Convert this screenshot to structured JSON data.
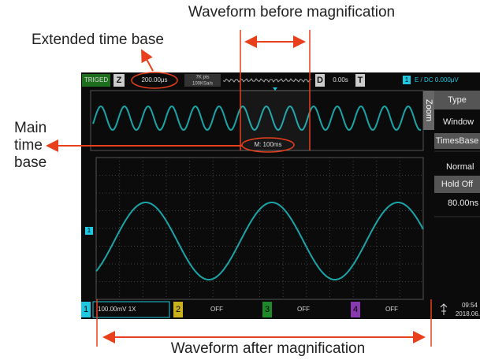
{
  "annotations": {
    "before": "Waveform before magnification",
    "extended": "Extended time base",
    "main": [
      "Main",
      "time",
      "base"
    ],
    "after": "Waveform after magnification"
  },
  "status_bar": {
    "trig": "TRIGED",
    "zoom": "Z",
    "timebase": "200.00μs",
    "points": "7K pts",
    "rate": "100KSa/s",
    "d": "D",
    "delay": "0.00s",
    "t": "T",
    "ch": "1",
    "trigger": "E / DC 0.000μV"
  },
  "zoom_window": {
    "main_timebase": "M: 100ms"
  },
  "menu": {
    "tab": "Zoom",
    "type_title": "Type",
    "type_value": "Window",
    "timebase_title": "TimesBase",
    "timebase_value": "Normal",
    "holdoff_title": "Hold Off",
    "holdoff_value": "80.00ns"
  },
  "channel_marker": "1",
  "bottom_bar": {
    "ch1": "1",
    "ch1_scale": "100.00mV 1X",
    "ch2": "2",
    "ch2_state": "OFF",
    "ch3": "3",
    "ch3_state": "OFF",
    "ch4": "4",
    "ch4_state": "OFF",
    "time": "09:54",
    "date": "2018.06."
  }
}
